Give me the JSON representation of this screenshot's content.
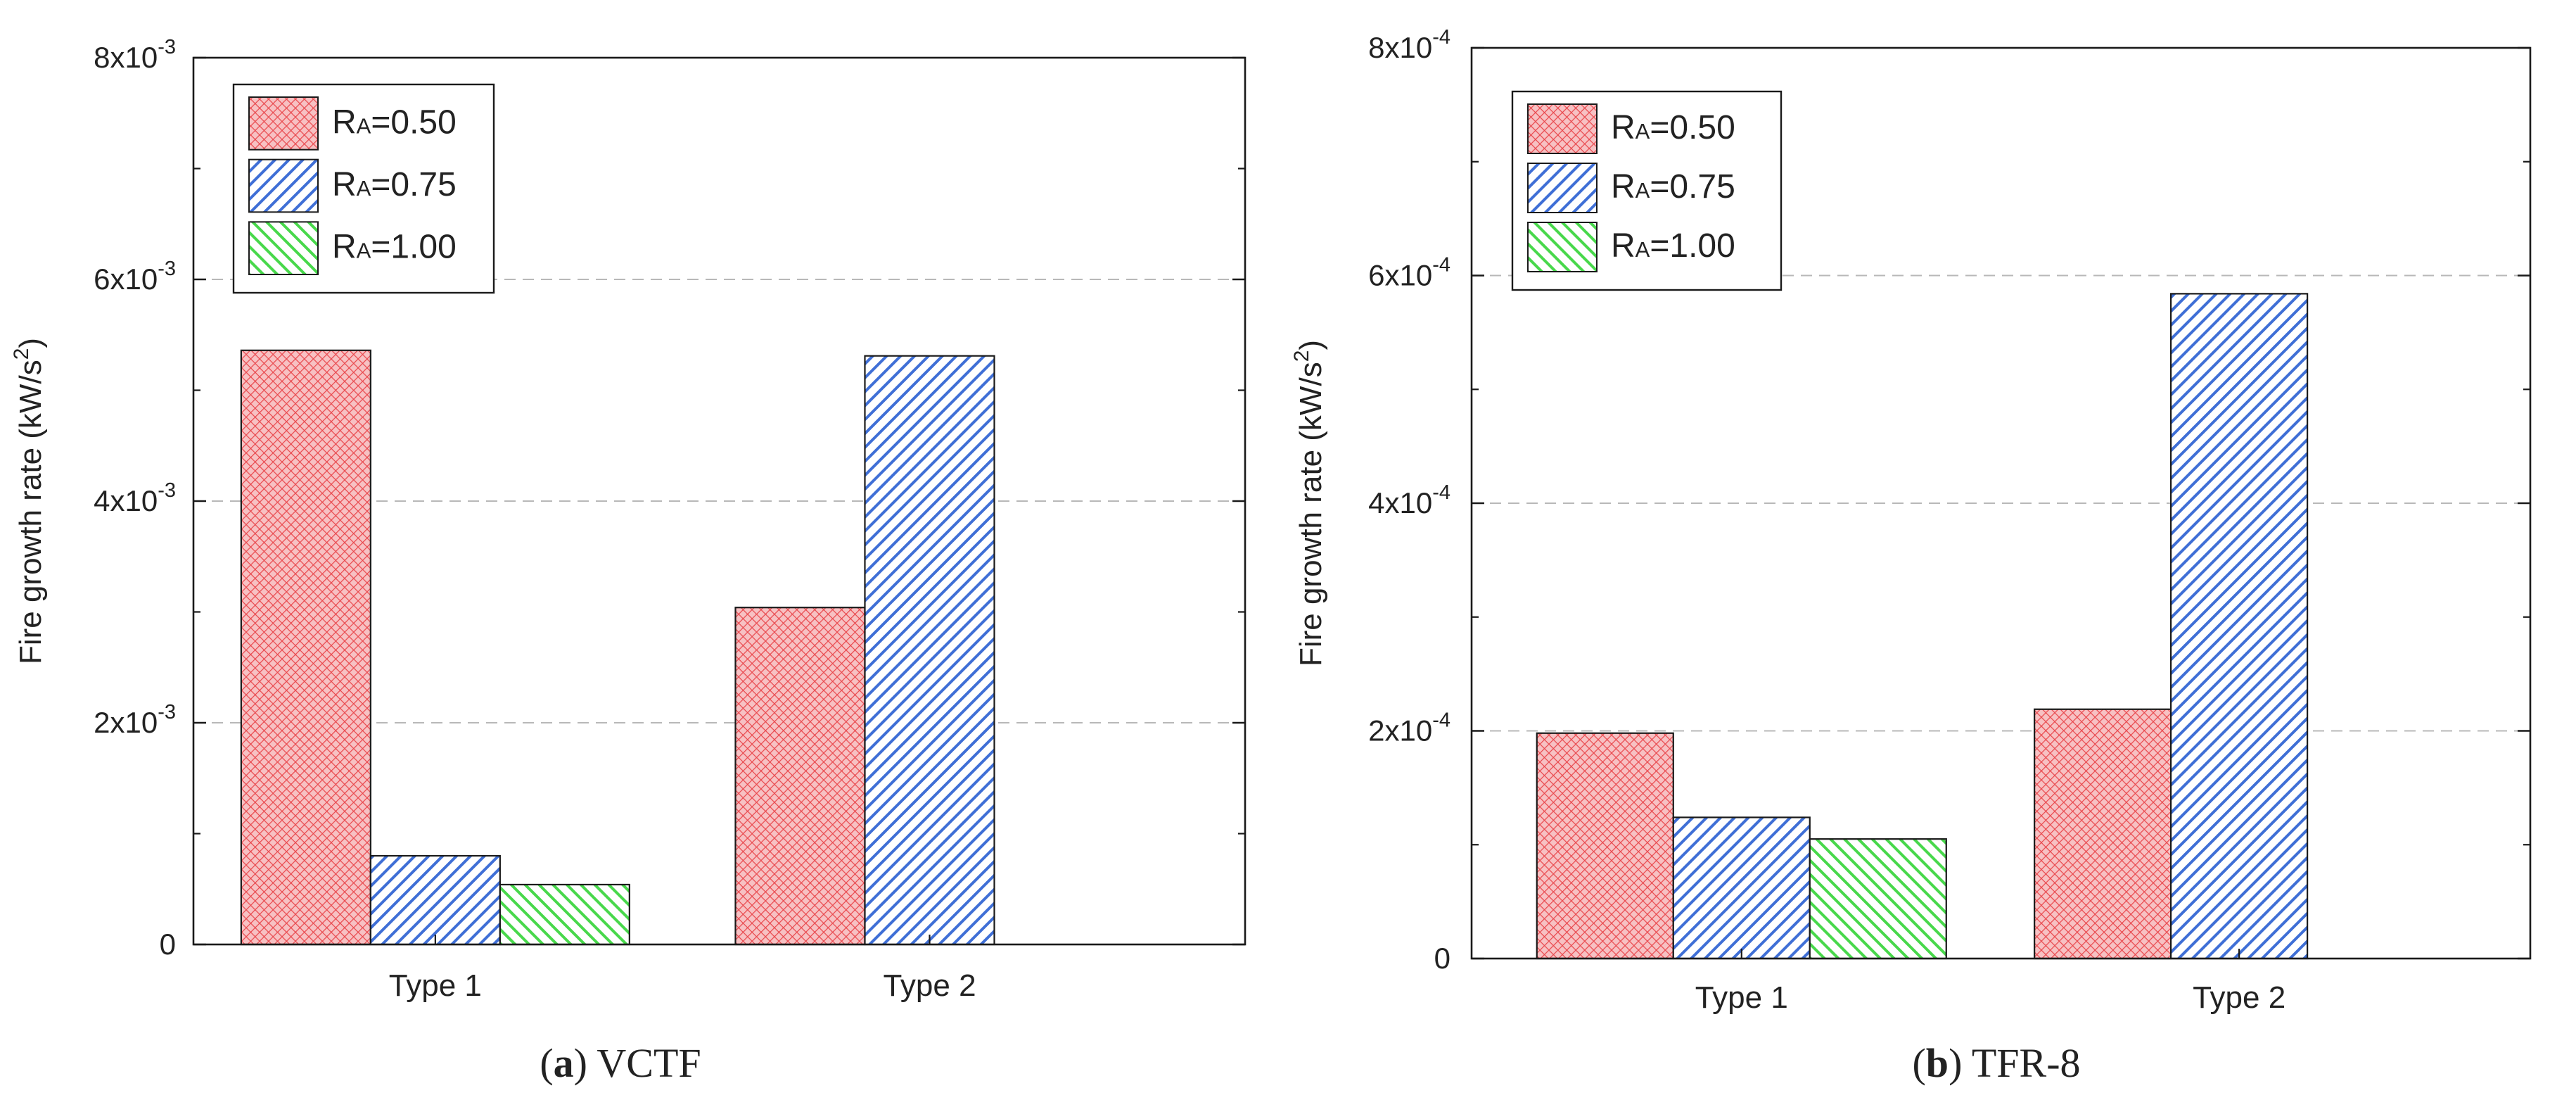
{
  "chart_data": [
    {
      "type": "bar",
      "caption": {
        "letter": "a",
        "open": "(",
        "close": ")",
        "text": " VCTF"
      },
      "ylabel": "Fire growth rate (kW/s²)",
      "categories": [
        "Type 1",
        "Type 2"
      ],
      "ylim": [
        0,
        0.008
      ],
      "ytick_values": [
        0,
        0.002,
        0.004,
        0.006,
        0.008
      ],
      "ytick_labels": [
        {
          "m": "0",
          "e": ""
        },
        {
          "m": "2x10",
          "e": "-3"
        },
        {
          "m": "4x10",
          "e": "-3"
        },
        {
          "m": "6x10",
          "e": "-3"
        },
        {
          "m": "8x10",
          "e": "-3"
        }
      ],
      "grid": "horizontal-dashed",
      "legend_position": "top-left",
      "series": [
        {
          "name": "RA=0.50",
          "sym": "R",
          "sub": "A",
          "val": "=0.50",
          "pattern": "crosshatch",
          "color": "#e9474c",
          "fill": "#f7c1c3",
          "values": [
            0.00536,
            0.00304
          ]
        },
        {
          "name": "RA=0.75",
          "sym": "R",
          "sub": "A",
          "val": "=0.75",
          "pattern": "diagonal",
          "color": "#3f6fd6",
          "fill": "#ffffff",
          "values": [
            0.0008,
            0.00531
          ]
        },
        {
          "name": "RA=1.00",
          "sym": "R",
          "sub": "A",
          "val": "=1.00",
          "pattern": "diagonal-reverse",
          "color": "#48d84b",
          "fill": "#ffffff",
          "values": [
            0.00054,
            null
          ]
        }
      ]
    },
    {
      "type": "bar",
      "caption": {
        "letter": "b",
        "open": "(",
        "close": ")",
        "text": " TFR-8"
      },
      "ylabel": "Fire growth rate (kW/s²)",
      "categories": [
        "Type 1",
        "Type 2"
      ],
      "ylim": [
        0,
        0.0008
      ],
      "ytick_values": [
        0,
        0.0002,
        0.0004,
        0.0006,
        0.0008
      ],
      "ytick_labels": [
        {
          "m": "0",
          "e": ""
        },
        {
          "m": "2x10",
          "e": "-4"
        },
        {
          "m": "4x10",
          "e": "-4"
        },
        {
          "m": "6x10",
          "e": "-4"
        },
        {
          "m": "8x10",
          "e": "-4"
        }
      ],
      "grid": "horizontal-dashed",
      "legend_position": "top-left",
      "series": [
        {
          "name": "RA=0.50",
          "sym": "R",
          "sub": "A",
          "val": "=0.50",
          "pattern": "crosshatch",
          "color": "#e9474c",
          "fill": "#f7c1c3",
          "values": [
            0.000198,
            0.000219
          ]
        },
        {
          "name": "RA=0.75",
          "sym": "R",
          "sub": "A",
          "val": "=0.75",
          "pattern": "diagonal",
          "color": "#3f6fd6",
          "fill": "#ffffff",
          "values": [
            0.000124,
            0.000584
          ]
        },
        {
          "name": "RA=1.00",
          "sym": "R",
          "sub": "A",
          "val": "=1.00",
          "pattern": "diagonal-reverse",
          "color": "#48d84b",
          "fill": "#ffffff",
          "values": [
            0.000105,
            null
          ]
        }
      ]
    }
  ]
}
